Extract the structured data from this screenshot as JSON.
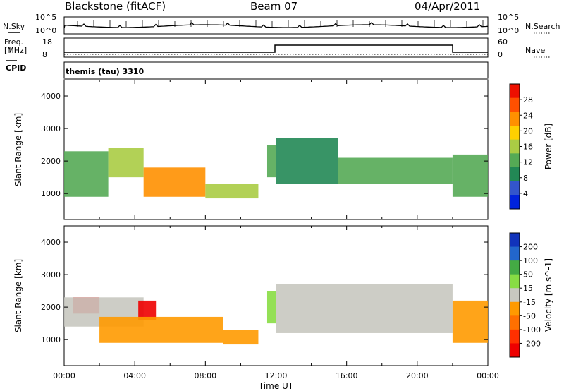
{
  "header": {
    "station": "Blackstone (fitACF)",
    "beam": "Beam 07",
    "date": "04/Apr/2011"
  },
  "noise_panel": {
    "left_label": "N.Sky",
    "left_ticks": [
      "10^5",
      "10^0"
    ],
    "right_label": "N.Search",
    "right_ticks": [
      "10^5",
      "10^0"
    ]
  },
  "freq_panel": {
    "left_label_line1": "Freq.",
    "left_label_line2": "[MHz]",
    "left_ticks": [
      "18",
      "8"
    ],
    "right_label": "Nave",
    "right_ticks": [
      "60",
      "0"
    ],
    "cpid_label": "CPID",
    "cpid_text": "themis (tau) 3310"
  },
  "colors": {
    "power": [
      "#0022dd",
      "#3355cc",
      "#228855",
      "#55aa55",
      "#aacc44",
      "#ffd000",
      "#ff9000",
      "#ff5000",
      "#ee1000"
    ],
    "velocity": [
      "#1133bb",
      "#2266cc",
      "#44aa44",
      "#88dd44",
      "#c8c8c0",
      "#ff9a00",
      "#ff7000",
      "#ff3000",
      "#ee0000"
    ]
  },
  "chart_data": [
    {
      "type": "heatmap",
      "ylabel": "Slant Range [km]",
      "ylim": [
        200,
        4500
      ],
      "yticks": [
        "1000",
        "2000",
        "3000",
        "4000"
      ],
      "xlim": [
        "00:00",
        "24:00"
      ],
      "colorbar_label": "Power [dB]",
      "colorbar_ticks": [
        "4",
        "8",
        "12",
        "16",
        "20",
        "24",
        "28"
      ],
      "colorbar_range": [
        0,
        30
      ],
      "regions": [
        {
          "t0": 0.0,
          "t1": 2.5,
          "r0": 900,
          "r1": 2300,
          "value": 10
        },
        {
          "t0": 2.5,
          "t1": 4.5,
          "r0": 1500,
          "r1": 2400,
          "value": 14
        },
        {
          "t0": 4.5,
          "t1": 8.0,
          "r0": 900,
          "r1": 1800,
          "value": 20
        },
        {
          "t0": 8.0,
          "t1": 11.0,
          "r0": 850,
          "r1": 1300,
          "value": 14
        },
        {
          "t0": 11.5,
          "t1": 12.0,
          "r0": 1500,
          "r1": 2500,
          "value": 12
        },
        {
          "t0": 12.0,
          "t1": 15.5,
          "r0": 1300,
          "r1": 2700,
          "value": 8
        },
        {
          "t0": 15.5,
          "t1": 22.0,
          "r0": 1300,
          "r1": 2100,
          "value": 12
        },
        {
          "t0": 22.0,
          "t1": 24.0,
          "r0": 900,
          "r1": 2200,
          "value": 10
        }
      ]
    },
    {
      "type": "heatmap",
      "ylabel": "Slant Range [km]",
      "xlabel": "Time UT",
      "ylim": [
        200,
        4500
      ],
      "yticks": [
        "1000",
        "2000",
        "3000",
        "4000"
      ],
      "xticks": [
        "00:00",
        "04:00",
        "08:00",
        "12:00",
        "16:00",
        "20:00",
        "00:00"
      ],
      "xlim": [
        "00:00",
        "24:00"
      ],
      "colorbar_label": "Velocity [m s^-1]",
      "colorbar_ticks": [
        "200",
        "100",
        "50",
        "15",
        "-15",
        "-50",
        "-100",
        "-200"
      ],
      "colorbar_range": [
        -250,
        250
      ],
      "regions": [
        {
          "t0": 0.5,
          "t1": 2.0,
          "r0": 1800,
          "r1": 2300,
          "value": -200
        },
        {
          "t0": 0.0,
          "t1": 4.5,
          "r0": 1400,
          "r1": 2300,
          "value": 0
        },
        {
          "t0": 4.2,
          "t1": 5.2,
          "r0": 1600,
          "r1": 2200,
          "value": -200
        },
        {
          "t0": 2.0,
          "t1": 9.0,
          "r0": 900,
          "r1": 1700,
          "value": -60
        },
        {
          "t0": 9.0,
          "t1": 11.0,
          "r0": 850,
          "r1": 1300,
          "value": -40
        },
        {
          "t0": 11.5,
          "t1": 12.0,
          "r0": 1500,
          "r1": 2500,
          "value": 30
        },
        {
          "t0": 12.0,
          "t1": 22.0,
          "r0": 1200,
          "r1": 2700,
          "value": 0
        },
        {
          "t0": 22.0,
          "t1": 24.0,
          "r0": 900,
          "r1": 2200,
          "value": -30
        }
      ]
    }
  ]
}
